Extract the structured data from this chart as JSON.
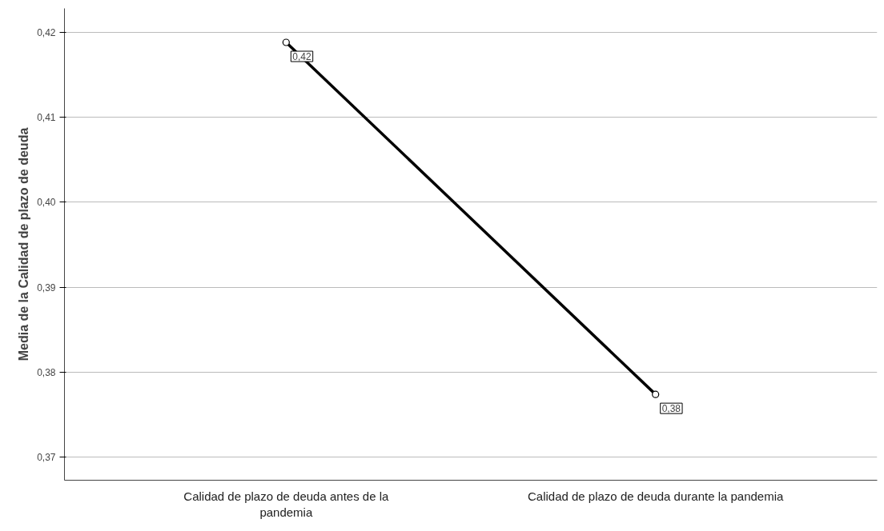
{
  "chart_data": {
    "type": "line",
    "ylabel": "Media de la Calidad de plazo de deuda",
    "categories": [
      "Calidad de plazo de deuda antes de la\npandemia",
      "Calidad de plazo de deuda durante la pandemia"
    ],
    "series": [
      {
        "color": "#000000",
        "values": [
          0.4188,
          0.3774
        ],
        "value_labels": [
          "0,42",
          "0,38"
        ]
      }
    ],
    "ylim": [
      0.3673,
      0.4228
    ],
    "yticks": [
      {
        "value": 0.37,
        "label": "0,37"
      },
      {
        "value": 0.38,
        "label": "0,38"
      },
      {
        "value": 0.39,
        "label": "0,39"
      },
      {
        "value": 0.4,
        "label": "0,40"
      },
      {
        "value": 0.41,
        "label": "0,41"
      },
      {
        "value": 0.42,
        "label": "0,42"
      }
    ],
    "grid": "y",
    "marker": "circle",
    "line_style": "solid"
  }
}
